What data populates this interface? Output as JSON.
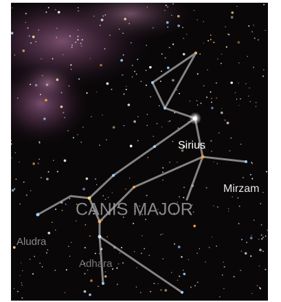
{
  "labels": {
    "constellation": "CANIS MAJOR",
    "stars": [
      "Sirius",
      "Mirzam",
      "Aludra",
      "Adhara"
    ]
  }
}
